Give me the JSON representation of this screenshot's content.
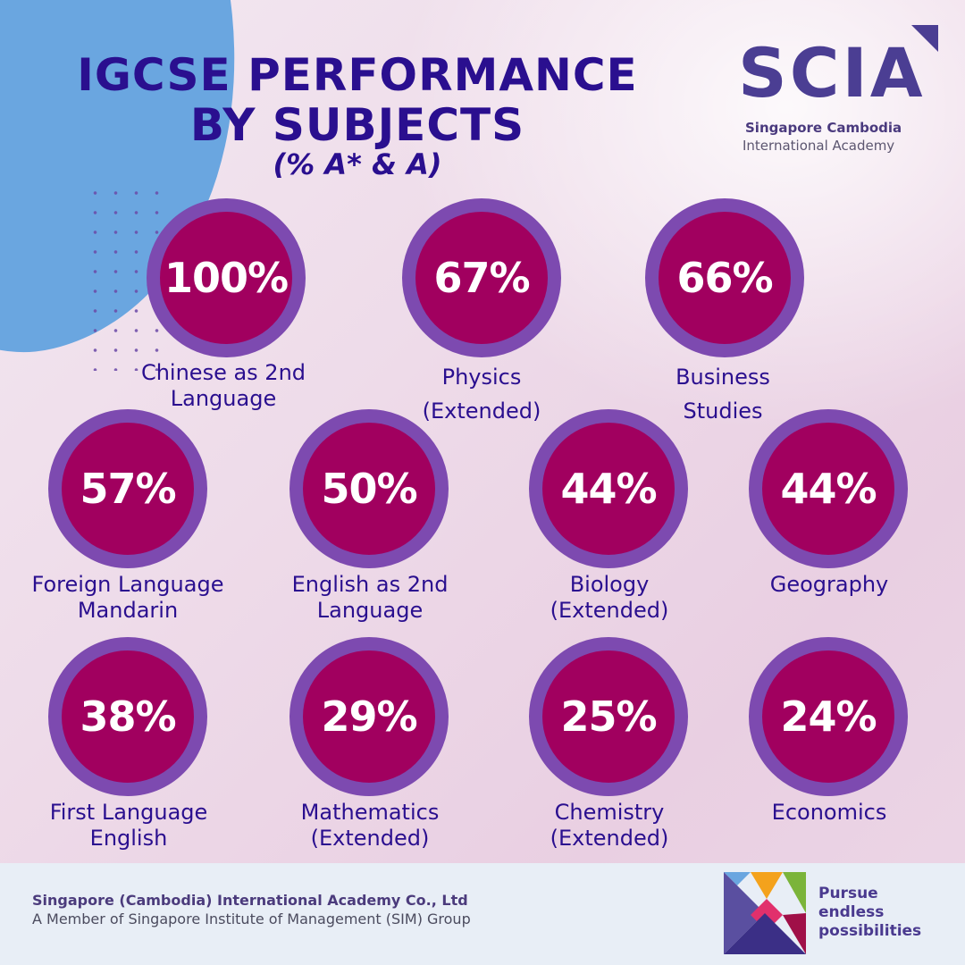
{
  "title_line1": "IGCSE PERFORMANCE",
  "title_line2": "BY SUBJECTS",
  "subtitle": "(% A* & A)",
  "logo": {
    "wordmark": "SCIA",
    "line1": "Singapore Cambodia",
    "line2": "International Academy"
  },
  "subjects": [
    {
      "percent": "100%",
      "value": 100,
      "label_line1": "Chinese as 2nd",
      "label_line2": "Language"
    },
    {
      "percent": "67%",
      "value": 67,
      "label_line1": "Physics",
      "label_line2": "(Extended)"
    },
    {
      "percent": "66%",
      "value": 66,
      "label_line1": "Business",
      "label_line2": "Studies"
    },
    {
      "percent": "57%",
      "value": 57,
      "label_line1": "Foreign Language",
      "label_line2": "Mandarin"
    },
    {
      "percent": "50%",
      "value": 50,
      "label_line1": "English as 2nd",
      "label_line2": "Language"
    },
    {
      "percent": "44%",
      "value": 44,
      "label_line1": "Biology",
      "label_line2": "(Extended)"
    },
    {
      "percent": "44%",
      "value": 44,
      "label_line1": "Geography",
      "label_line2": ""
    },
    {
      "percent": "38%",
      "value": 38,
      "label_line1": "First Language",
      "label_line2": "English"
    },
    {
      "percent": "29%",
      "value": 29,
      "label_line1": "Mathematics",
      "label_line2": "(Extended)"
    },
    {
      "percent": "25%",
      "value": 25,
      "label_line1": "Chemistry",
      "label_line2": "(Extended)"
    },
    {
      "percent": "24%",
      "value": 24,
      "label_line1": "Economics",
      "label_line2": ""
    }
  ],
  "footer": {
    "company": "Singapore (Cambodia) International Academy Co., Ltd",
    "member": "A Member of Singapore Institute of Management (SIM) Group",
    "tagline_line1": "Pursue",
    "tagline_line2": "endless",
    "tagline_line3": "possibilities"
  },
  "colors": {
    "title": "#2a0f8f",
    "circle_fill": "#a1005f",
    "circle_ring": "#7d4ab0",
    "blob": "#6aa6e0",
    "footer_bg": "#e8eef6"
  }
}
